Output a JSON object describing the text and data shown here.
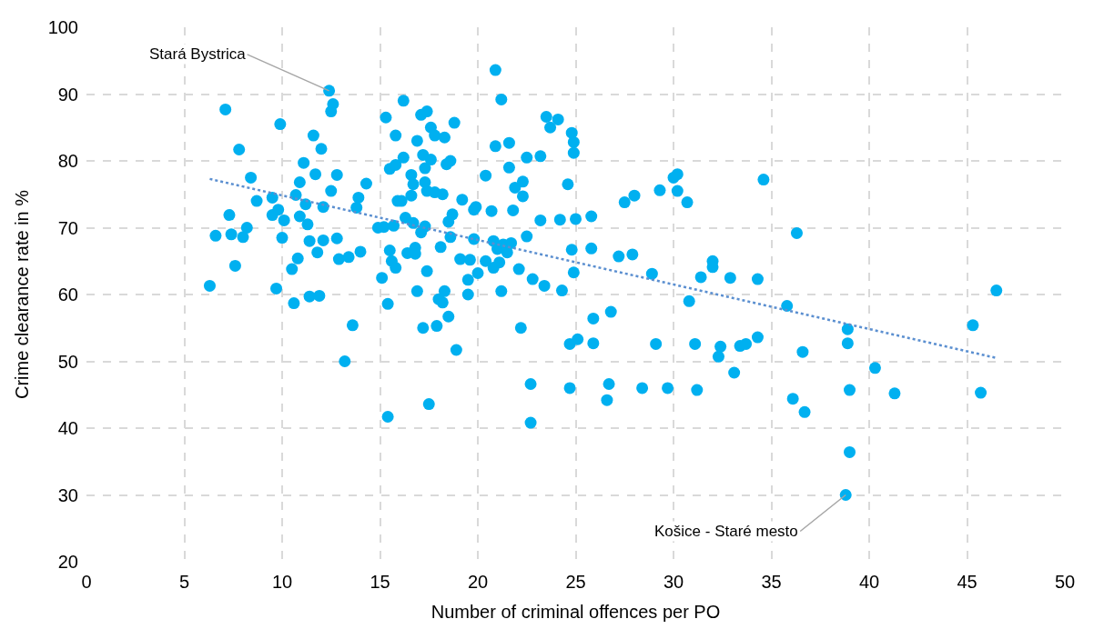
{
  "chart_data": {
    "type": "scatter",
    "xlabel": "Number of criminal offences per PO",
    "ylabel": "Crime clearance rate in %",
    "xlim": [
      0,
      50
    ],
    "xticks": [
      0,
      5,
      10,
      15,
      20,
      25,
      30,
      35,
      40,
      45,
      50
    ],
    "ylim": [
      20,
      100
    ],
    "yticks": [
      20,
      30,
      40,
      50,
      60,
      70,
      80,
      90,
      100
    ],
    "grid": true,
    "legend": false,
    "annotations": [
      {
        "text": "Stará Bystrica",
        "x": 12.4,
        "y": 90.5
      },
      {
        "text": "Košice - Staré mesto",
        "x": 38.8,
        "y": 30
      }
    ],
    "series": [
      {
        "color": "#00b0f0",
        "marker": "circle",
        "x": [
          6.3,
          6.6,
          7.1,
          7.3,
          7.4,
          7.6,
          7.8,
          8,
          8.2,
          8.4,
          8.7,
          9.5,
          9.5,
          9.7,
          9.8,
          9.9,
          10,
          10.1,
          10.5,
          10.6,
          10.7,
          10.8,
          10.9,
          10.9,
          11.1,
          11.2,
          11.3,
          11.4,
          11.4,
          11.6,
          11.7,
          11.8,
          11.9,
          12,
          12.1,
          12.1,
          12.4,
          12.5,
          12.6,
          12.5,
          12.8,
          12.8,
          12.9,
          13.2,
          13.4,
          13.6,
          13.8,
          13.9,
          14,
          14.3,
          14.9,
          15.1,
          15.2,
          15.3,
          15.4,
          15.4,
          15.5,
          15.5,
          15.6,
          15.8,
          15.7,
          15.8,
          15.8,
          15.9,
          16.1,
          16.2,
          16.2,
          16.3,
          16.4,
          16.6,
          16.6,
          16.7,
          16.7,
          16.8,
          16.8,
          16.9,
          16.9,
          17.1,
          17.1,
          17.2,
          17.3,
          17.3,
          17.3,
          17.4,
          17.4,
          17.2,
          17.4,
          17.5,
          17.6,
          17.6,
          17.8,
          17.8,
          17.9,
          18,
          18.1,
          18.2,
          18.2,
          18.3,
          18.3,
          18.4,
          18.5,
          18.5,
          18.6,
          18.6,
          18.7,
          18.8,
          18.9,
          19.1,
          19.2,
          19.5,
          19.5,
          19.6,
          19.8,
          19.8,
          19.9,
          20,
          20.4,
          20.4,
          20.7,
          20.8,
          20.8,
          20.9,
          20.9,
          21,
          21.1,
          21.2,
          21.2,
          21.3,
          21.5,
          21.6,
          21.6,
          21.7,
          21.8,
          21.9,
          22.1,
          22.2,
          22.3,
          22.3,
          22.5,
          22.5,
          22.7,
          22.7,
          22.8,
          23.2,
          23.2,
          23.4,
          23.5,
          23.7,
          24.1,
          24.2,
          24.3,
          24.6,
          24.7,
          24.7,
          24.8,
          24.9,
          24.9,
          24.8,
          24.9,
          25,
          25.1,
          25.8,
          25.8,
          25.9,
          25.9,
          26.6,
          26.7,
          26.8,
          27.2,
          27.5,
          27.9,
          28,
          28.4,
          28.9,
          29.1,
          29.3,
          29.7,
          30,
          30.2,
          30.2,
          30.7,
          30.8,
          31.1,
          31.2,
          31.4,
          32,
          32,
          32.3,
          32.4,
          32.9,
          33.1,
          33.4,
          33.7,
          34.3,
          34.3,
          34.6,
          35.8,
          36.1,
          36.3,
          36.6,
          36.7,
          38.9,
          38.9,
          39,
          39,
          38.8,
          40.3,
          41.3,
          45.3,
          45.7,
          46.5
        ],
        "values": [
          61.3,
          68.8,
          87.7,
          71.9,
          69,
          64.3,
          81.7,
          68.6,
          70,
          77.5,
          74,
          74.5,
          71.9,
          60.9,
          72.7,
          85.5,
          68.5,
          71.1,
          63.8,
          58.7,
          74.9,
          65.4,
          76.8,
          71.7,
          79.7,
          73.5,
          70.5,
          68,
          59.7,
          83.8,
          78,
          66.3,
          59.8,
          81.8,
          73.1,
          68.1,
          90.5,
          87.4,
          88.5,
          75.5,
          77.9,
          68.4,
          65.3,
          50,
          65.6,
          55.4,
          73,
          74.5,
          66.4,
          76.6,
          70,
          62.5,
          70.1,
          86.5,
          41.7,
          58.6,
          78.8,
          66.6,
          65,
          83.8,
          70.3,
          79.4,
          64,
          74,
          74,
          89,
          80.5,
          71.5,
          66.2,
          74.8,
          77.9,
          76.5,
          70.7,
          67,
          66.1,
          60.5,
          83,
          86.9,
          69.3,
          80.9,
          70.2,
          78.9,
          76.8,
          87.4,
          75.5,
          55,
          63.5,
          43.6,
          85,
          80.2,
          75.3,
          83.8,
          55.3,
          59.3,
          67.1,
          75,
          58.8,
          60.5,
          83.5,
          79.5,
          70.9,
          56.7,
          80,
          68.6,
          72,
          85.7,
          51.7,
          65.3,
          74.2,
          60,
          62.2,
          65.2,
          68.3,
          72.7,
          73.1,
          63.2,
          77.8,
          65,
          72.5,
          68,
          64,
          93.6,
          82.2,
          66.8,
          64.8,
          89.2,
          60.5,
          67.5,
          66.3,
          79,
          82.7,
          67.7,
          72.6,
          76,
          63.8,
          55,
          74.7,
          76.9,
          68.7,
          80.5,
          46.6,
          40.8,
          62.3,
          80.7,
          71.1,
          61.3,
          86.6,
          85,
          86.2,
          71.2,
          60.6,
          76.5,
          52.6,
          46,
          84.2,
          82.8,
          81.2,
          66.7,
          63.3,
          71.3,
          53.3,
          71.7,
          66.9,
          56.4,
          52.7,
          44.2,
          46.6,
          57.4,
          65.7,
          73.8,
          66,
          74.8,
          46,
          63.1,
          52.6,
          75.6,
          46,
          77.5,
          78,
          75.5,
          73.8,
          59,
          52.6,
          45.7,
          62.6,
          65,
          64.1,
          50.7,
          52.2,
          62.5,
          48.3,
          52.3,
          52.6,
          62.3,
          53.6,
          77.2,
          58.3,
          44.4,
          69.2,
          51.4,
          42.4,
          54.8,
          52.7,
          45.7,
          36.4,
          30,
          49,
          45.2,
          55.4,
          45.3,
          60.6
        ]
      },
      {
        "type": "line",
        "color": "#5b8fd0",
        "line_style": "dotted",
        "marker": "none",
        "x": [
          6.3,
          46.5
        ],
        "values": [
          77.3,
          50.5
        ]
      }
    ]
  }
}
